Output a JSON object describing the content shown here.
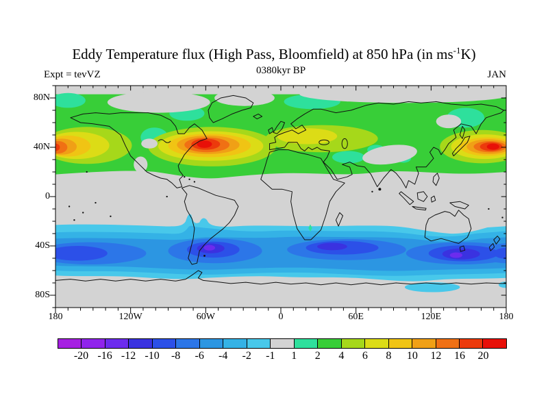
{
  "header": {
    "title_pre": "Eddy Temperature flux (High Pass, Bloomfield) at 850 hPa (in ms",
    "title_sup": "-1",
    "title_post": "K)",
    "subtitle": "0380kyr BP",
    "experiment": "Expt = tevVZ",
    "month": "JAN"
  },
  "axes": {
    "lat_labels": [
      "80N",
      "40N",
      "0",
      "40S",
      "80S"
    ],
    "lon_labels": [
      "180",
      "120W",
      "60W",
      "0",
      "60E",
      "120E",
      "180"
    ]
  },
  "colorbar": {
    "labels": [
      "-20",
      "-16",
      "-12",
      "-10",
      "-8",
      "-6",
      "-4",
      "-2",
      "-1",
      "1",
      "2",
      "4",
      "6",
      "8",
      "10",
      "12",
      "16",
      "20"
    ],
    "colors": [
      "#A620E2",
      "#9024EC",
      "#6C2CEE",
      "#3A32E0",
      "#2C50E8",
      "#2C76E8",
      "#2C96E2",
      "#34B2E6",
      "#48C8EA",
      "#D3D3D3",
      "#2EE09C",
      "#38CE38",
      "#A6D81A",
      "#DCDC16",
      "#F0C414",
      "#F0A016",
      "#F07014",
      "#EC3A0C",
      "#E81008"
    ]
  },
  "chart_data": {
    "type": "heatmap",
    "subtype": "filled-contour-world-map",
    "title": "Eddy Temperature flux (High Pass, Bloomfield) at 850 hPa (in ms-1K)",
    "subtitle": "0380kyr BP",
    "experiment": "tevVZ",
    "month": "JAN",
    "units": "ms-1K",
    "pressure_level_hPa": 850,
    "lon_range": [
      -180,
      180
    ],
    "lat_range": [
      -90,
      90
    ],
    "lon_tick_major_deg": 60,
    "lon_tick_minor_deg": 10,
    "lat_tick_major_deg": 40,
    "lat_tick_minor_deg": 10,
    "contour_levels": [
      -20,
      -16,
      -12,
      -10,
      -8,
      -6,
      -4,
      -2,
      -1,
      1,
      2,
      4,
      6,
      8,
      10,
      12,
      16,
      20
    ],
    "background_value_color": "#D3D3D3",
    "legend_position": "bottom",
    "features": [
      {
        "region": "Northern mid-latitude storm-track band",
        "lat_span": [
          20,
          78
        ],
        "sign": "positive",
        "value_range": [
          2,
          8
        ]
      },
      {
        "region": "North Atlantic / US East Coast maximum",
        "lon": -60,
        "lat": 40,
        "peak_value": ">16 (core >20)"
      },
      {
        "region": "Northwest Pacific maximum east of Japan",
        "lon": 163,
        "lat": 37,
        "peak_value": ">16"
      },
      {
        "region": "Northeast Pacific maximum at dateline (wraps map edges)",
        "lon": -178,
        "lat": 40,
        "peak_value": "12 to 16"
      },
      {
        "region": "Europe secondary maximum",
        "lon": 15,
        "lat": 50,
        "peak_value": "6 to 8"
      },
      {
        "region": "Tropics 18S-18N, Arctic cap, Tibetan Plateau, Sea of Okhotsk",
        "sign": "near zero",
        "value_range": [
          -1,
          1
        ]
      },
      {
        "region": "Southern mid-latitude band",
        "lat_span": [
          -62,
          -25
        ],
        "sign": "negative",
        "value_range": [
          -10,
          -2
        ]
      },
      {
        "region": "South Atlantic minimum east of Argentina",
        "lon": -45,
        "lat": -44,
        "peak_value": "<-12"
      },
      {
        "region": "South Indian Ocean minimum",
        "lon": 50,
        "lat": -46,
        "peak_value": "-12 to -10"
      },
      {
        "region": "Minimum south of Australia / Tasman Sea",
        "lon": 140,
        "lat": -46,
        "peak_value": "<-12"
      },
      {
        "region": "South Pacific minimum near dateline",
        "lon": -170,
        "lat": -45,
        "peak_value": "-12 to -10"
      },
      {
        "region": "Antarctic coastal weak negative patch",
        "lon": 120,
        "lat": -66,
        "peak_value": "-2 to -1"
      }
    ]
  }
}
